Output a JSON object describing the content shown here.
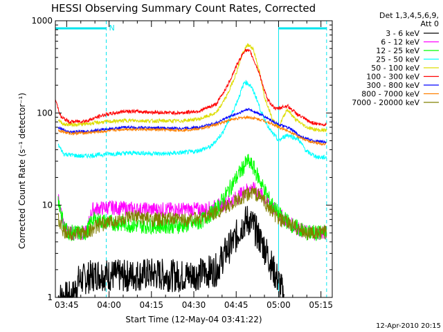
{
  "chart_data": {
    "type": "line",
    "title": "HESSI Observing Summary Count Rates, Corrected",
    "ylabel": "Corrected Count Rate (s⁻¹ detector⁻¹)",
    "xlabel": "Start Time (12-May-04 03:41:22)",
    "yscale": "log",
    "ylim": [
      1,
      1000
    ],
    "xlim_minutes": [
      221,
      319
    ],
    "yticks": [
      {
        "label": "1",
        "value": 1
      },
      {
        "label": "10",
        "value": 10
      },
      {
        "label": "100",
        "value": 100
      },
      {
        "label": "1000",
        "value": 1000
      }
    ],
    "xticks": [
      {
        "label": "03:45",
        "value": 225
      },
      {
        "label": "04:00",
        "value": 240
      },
      {
        "label": "04:15",
        "value": 255
      },
      {
        "label": "04:30",
        "value": 270
      },
      {
        "label": "04:45",
        "value": 285
      },
      {
        "label": "05:00",
        "value": 300
      },
      {
        "label": "05:15",
        "value": 315
      }
    ],
    "legend_header": [
      "Det 1,3,4,5,6,9,",
      "Att 0"
    ],
    "legend_position": "top-right outside",
    "flag_label": "N",
    "timestamp": "12-Apr-2010 20:15",
    "markers": {
      "solid_verticals": [
        221,
        300
      ],
      "dashed_verticals": [
        239,
        317
      ],
      "flag_bars": [
        [
          221,
          239
        ],
        [
          300,
          317
        ]
      ]
    },
    "series": [
      {
        "name": "3 - 6 keV",
        "color": "#000000",
        "points": [
          [
            222,
            1
          ],
          [
            227,
            1
          ],
          [
            229,
            1.5
          ],
          [
            236,
            1.8
          ],
          [
            245,
            1.7
          ],
          [
            255,
            1.8
          ],
          [
            265,
            1.7
          ],
          [
            272,
            1.8
          ],
          [
            278,
            2
          ],
          [
            281,
            3
          ],
          [
            284,
            4
          ],
          [
            287,
            6
          ],
          [
            289,
            7
          ],
          [
            291,
            6
          ],
          [
            293,
            4.5
          ],
          [
            296,
            3
          ],
          [
            298,
            2
          ],
          [
            300,
            1.5
          ],
          [
            302,
            1
          ]
        ]
      },
      {
        "name": "6 - 12 keV",
        "color": "#ff00ff",
        "points": [
          [
            222,
            12
          ],
          [
            224,
            6
          ],
          [
            226,
            5
          ],
          [
            232,
            5
          ],
          [
            234,
            9
          ],
          [
            240,
            9.5
          ],
          [
            250,
            9
          ],
          [
            260,
            9
          ],
          [
            268,
            9
          ],
          [
            274,
            9
          ],
          [
            280,
            10
          ],
          [
            285,
            12
          ],
          [
            289,
            15
          ],
          [
            291,
            15
          ],
          [
            294,
            13
          ],
          [
            297,
            10
          ],
          [
            300,
            8
          ],
          [
            305,
            6
          ],
          [
            310,
            5
          ],
          [
            317,
            5
          ]
        ]
      },
      {
        "name": "12 - 25 keV",
        "color": "#00ff00",
        "points": [
          [
            222,
            12
          ],
          [
            224,
            6
          ],
          [
            226,
            5
          ],
          [
            232,
            5
          ],
          [
            234,
            7
          ],
          [
            240,
            6.5
          ],
          [
            250,
            6
          ],
          [
            260,
            6
          ],
          [
            266,
            6
          ],
          [
            272,
            6.5
          ],
          [
            278,
            9
          ],
          [
            282,
            14
          ],
          [
            286,
            22
          ],
          [
            289,
            30
          ],
          [
            291,
            26
          ],
          [
            294,
            17
          ],
          [
            297,
            11
          ],
          [
            300,
            8
          ],
          [
            305,
            6
          ],
          [
            310,
            5
          ],
          [
            317,
            5
          ]
        ]
      },
      {
        "name": "25 - 50 keV",
        "color": "#00ffff",
        "points": [
          [
            222,
            45
          ],
          [
            224,
            36
          ],
          [
            230,
            34
          ],
          [
            236,
            35
          ],
          [
            240,
            36
          ],
          [
            250,
            37
          ],
          [
            260,
            36
          ],
          [
            270,
            38
          ],
          [
            276,
            43
          ],
          [
            280,
            60
          ],
          [
            283,
            90
          ],
          [
            286,
            150
          ],
          [
            288,
            220
          ],
          [
            290,
            200
          ],
          [
            292,
            150
          ],
          [
            294,
            100
          ],
          [
            297,
            65
          ],
          [
            300,
            50
          ],
          [
            303,
            58
          ],
          [
            307,
            52
          ],
          [
            310,
            38
          ],
          [
            314,
            33
          ],
          [
            317,
            33
          ]
        ]
      },
      {
        "name": "50 - 100 keV",
        "color": "#dddd00",
        "points": [
          [
            222,
            85
          ],
          [
            224,
            75
          ],
          [
            230,
            75
          ],
          [
            238,
            80
          ],
          [
            246,
            83
          ],
          [
            255,
            82
          ],
          [
            265,
            82
          ],
          [
            272,
            86
          ],
          [
            278,
            100
          ],
          [
            282,
            160
          ],
          [
            285,
            270
          ],
          [
            287,
            420
          ],
          [
            289,
            550
          ],
          [
            291,
            500
          ],
          [
            293,
            300
          ],
          [
            295,
            150
          ],
          [
            298,
            85
          ],
          [
            300,
            70
          ],
          [
            303,
            110
          ],
          [
            306,
            85
          ],
          [
            310,
            70
          ],
          [
            314,
            65
          ],
          [
            317,
            65
          ]
        ]
      },
      {
        "name": "100 - 300 keV",
        "color": "#ff0000",
        "points": [
          [
            221,
            140
          ],
          [
            223,
            90
          ],
          [
            226,
            80
          ],
          [
            232,
            82
          ],
          [
            238,
            95
          ],
          [
            246,
            105
          ],
          [
            255,
            102
          ],
          [
            265,
            100
          ],
          [
            272,
            105
          ],
          [
            278,
            125
          ],
          [
            282,
            200
          ],
          [
            285,
            320
          ],
          [
            288,
            480
          ],
          [
            290,
            460
          ],
          [
            293,
            280
          ],
          [
            296,
            140
          ],
          [
            299,
            110
          ],
          [
            303,
            120
          ],
          [
            307,
            95
          ],
          [
            311,
            80
          ],
          [
            315,
            75
          ],
          [
            317,
            75
          ]
        ]
      },
      {
        "name": "300 - 800 keV",
        "color": "#0000ff",
        "points": [
          [
            222,
            70
          ],
          [
            226,
            62
          ],
          [
            232,
            63
          ],
          [
            238,
            66
          ],
          [
            246,
            70
          ],
          [
            255,
            69
          ],
          [
            265,
            68
          ],
          [
            272,
            70
          ],
          [
            278,
            78
          ],
          [
            282,
            90
          ],
          [
            286,
            100
          ],
          [
            289,
            110
          ],
          [
            291,
            105
          ],
          [
            294,
            95
          ],
          [
            297,
            85
          ],
          [
            300,
            75
          ],
          [
            304,
            68
          ],
          [
            308,
            55
          ],
          [
            312,
            50
          ],
          [
            317,
            48
          ]
        ]
      },
      {
        "name": "800 - 7000 keV",
        "color": "#ff8000",
        "points": [
          [
            222,
            65
          ],
          [
            226,
            60
          ],
          [
            232,
            61
          ],
          [
            238,
            63
          ],
          [
            246,
            67
          ],
          [
            255,
            66
          ],
          [
            265,
            65
          ],
          [
            272,
            67
          ],
          [
            278,
            75
          ],
          [
            282,
            83
          ],
          [
            286,
            88
          ],
          [
            289,
            90
          ],
          [
            291,
            88
          ],
          [
            294,
            84
          ],
          [
            297,
            78
          ],
          [
            300,
            70
          ],
          [
            304,
            63
          ],
          [
            308,
            53
          ],
          [
            312,
            48
          ],
          [
            317,
            46
          ]
        ]
      },
      {
        "name": "7000 - 20000 keV",
        "color": "#808000",
        "points": [
          [
            222,
            7
          ],
          [
            224,
            5
          ],
          [
            232,
            5
          ],
          [
            236,
            6
          ],
          [
            240,
            6.5
          ],
          [
            245,
            7
          ],
          [
            250,
            7.5
          ],
          [
            255,
            7
          ],
          [
            260,
            7
          ],
          [
            268,
            7
          ],
          [
            274,
            7.5
          ],
          [
            280,
            9
          ],
          [
            285,
            11
          ],
          [
            289,
            13
          ],
          [
            291,
            14
          ],
          [
            294,
            12
          ],
          [
            297,
            9
          ],
          [
            300,
            7
          ],
          [
            305,
            6
          ],
          [
            310,
            5
          ],
          [
            317,
            5
          ]
        ]
      }
    ]
  }
}
